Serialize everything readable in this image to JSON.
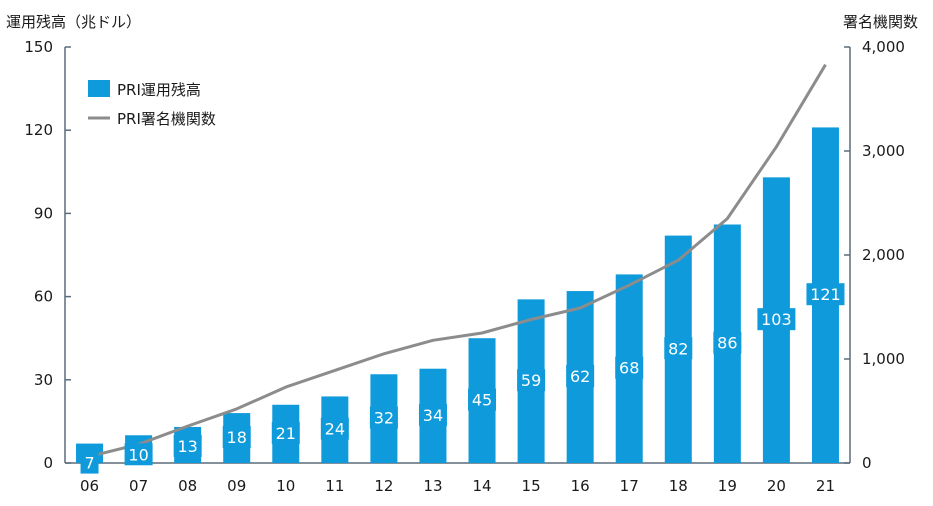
{
  "chart_data": {
    "type": "bar",
    "categories": [
      "06",
      "07",
      "08",
      "09",
      "10",
      "11",
      "12",
      "13",
      "14",
      "15",
      "16",
      "17",
      "18",
      "19",
      "20",
      "21"
    ],
    "series": [
      {
        "name": "PRI運用残高",
        "type": "bar",
        "axis": "left",
        "color": "#0E9ADB",
        "values": [
          7,
          10,
          13,
          18,
          21,
          24,
          32,
          34,
          45,
          59,
          62,
          68,
          82,
          86,
          103,
          121
        ],
        "labels": [
          "7",
          "10",
          "13",
          "18",
          "21",
          "24",
          "32",
          "34",
          "45",
          "59",
          "62",
          "68",
          "82",
          "86",
          "103",
          "121"
        ]
      },
      {
        "name": "PRI署名機関数",
        "type": "line",
        "axis": "right",
        "color": "#8C8C8C",
        "values": [
          63,
          180,
          355,
          520,
          730,
          890,
          1050,
          1180,
          1250,
          1380,
          1490,
          1710,
          1950,
          2350,
          3040,
          3830
        ]
      }
    ],
    "left_axis": {
      "label": "運用残高（兆ドル）",
      "ylim": [
        0,
        150
      ],
      "ticks": [
        0,
        30,
        60,
        90,
        120,
        150
      ],
      "tick_labels": [
        "0",
        "30",
        "60",
        "90",
        "120",
        "150"
      ]
    },
    "right_axis": {
      "label": "署名機関数",
      "ylim": [
        0,
        4000
      ],
      "ticks": [
        0,
        1000,
        2000,
        3000,
        4000
      ],
      "tick_labels": [
        "0",
        "1,000",
        "2,000",
        "3,000",
        "4,000"
      ]
    },
    "legend": {
      "position": "top-left",
      "items": [
        "PRI運用残高",
        "PRI署名機関数"
      ]
    },
    "grid": false,
    "axis_color": "#5B6B7B"
  }
}
